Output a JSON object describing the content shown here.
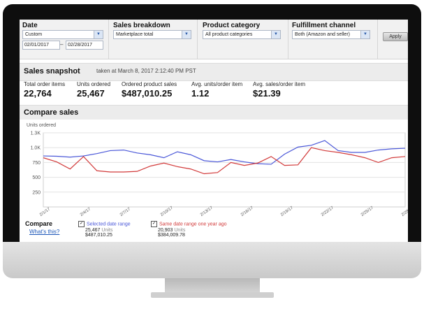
{
  "filters": {
    "date": {
      "label": "Date",
      "value": "Custom",
      "start": "02/01/2017",
      "dash": "–",
      "end": "02/28/2017"
    },
    "breakdown": {
      "label": "Sales breakdown",
      "value": "Marketplace total"
    },
    "category": {
      "label": "Product category",
      "value": "All product categories"
    },
    "fulfillment": {
      "label": "Fulfillment channel",
      "value": "Both (Amazon and seller)"
    },
    "apply_label": "Apply"
  },
  "snapshot": {
    "title": "Sales snapshot",
    "taken": "taken at March 8, 2017 2:12:40 PM PST",
    "metrics": [
      {
        "label": "Total order items",
        "value": "22,764"
      },
      {
        "label": "Units ordered",
        "value": "25,467"
      },
      {
        "label": "Ordered product sales",
        "value": "$487,010.25"
      },
      {
        "label": "Avg. units/order item",
        "value": "1.12"
      },
      {
        "label": "Avg. sales/order item",
        "value": "$21.39"
      }
    ]
  },
  "compare": {
    "title": "Compare sales",
    "compare_label": "Compare",
    "whats_this": "What's this?",
    "selected": {
      "label": "Selected date range",
      "units": "25,467",
      "units_label": "Units",
      "sales": "$487,010.25",
      "color": "#4a57d8"
    },
    "previous": {
      "label": "Same date range one year ago",
      "units": "20,903",
      "units_label": "Units",
      "sales": "$384,009.78",
      "color": "#d23a3a"
    }
  },
  "chart_data": {
    "type": "line",
    "ylabel": "Units ordered",
    "yticks": [
      "250",
      "500",
      "750",
      "1.0K",
      "1.3K"
    ],
    "ytick_values": [
      250,
      500,
      750,
      1000,
      1250
    ],
    "ylim": [
      0,
      1250
    ],
    "xticks": [
      "2/1/17",
      "2/4/17",
      "2/7/17",
      "2/10/17",
      "2/13/17",
      "2/16/17",
      "2/19/17",
      "2/22/17",
      "2/25/17",
      "2/28/17"
    ],
    "x": [
      "2/1/17",
      "2/2/17",
      "2/3/17",
      "2/4/17",
      "2/5/17",
      "2/6/17",
      "2/7/17",
      "2/8/17",
      "2/9/17",
      "2/10/17",
      "2/11/17",
      "2/12/17",
      "2/13/17",
      "2/14/17",
      "2/15/17",
      "2/16/17",
      "2/17/17",
      "2/18/17",
      "2/19/17",
      "2/20/17",
      "2/21/17",
      "2/22/17",
      "2/23/17",
      "2/24/17",
      "2/25/17",
      "2/26/17",
      "2/27/17",
      "2/28/17"
    ],
    "grid": true,
    "series": [
      {
        "name": "Selected date range",
        "color": "#4a57d8",
        "values": [
          860,
          855,
          840,
          860,
          900,
          950,
          960,
          910,
          880,
          830,
          930,
          880,
          780,
          760,
          800,
          760,
          730,
          720,
          890,
          1010,
          1040,
          1120,
          950,
          920,
          920,
          960,
          980,
          990
        ]
      },
      {
        "name": "Same date range one year ago",
        "color": "#d23a3a",
        "values": [
          830,
          760,
          640,
          850,
          610,
          590,
          590,
          600,
          690,
          740,
          680,
          640,
          560,
          580,
          750,
          700,
          740,
          850,
          700,
          710,
          1000,
          950,
          920,
          880,
          830,
          750,
          830,
          850
        ]
      }
    ]
  }
}
